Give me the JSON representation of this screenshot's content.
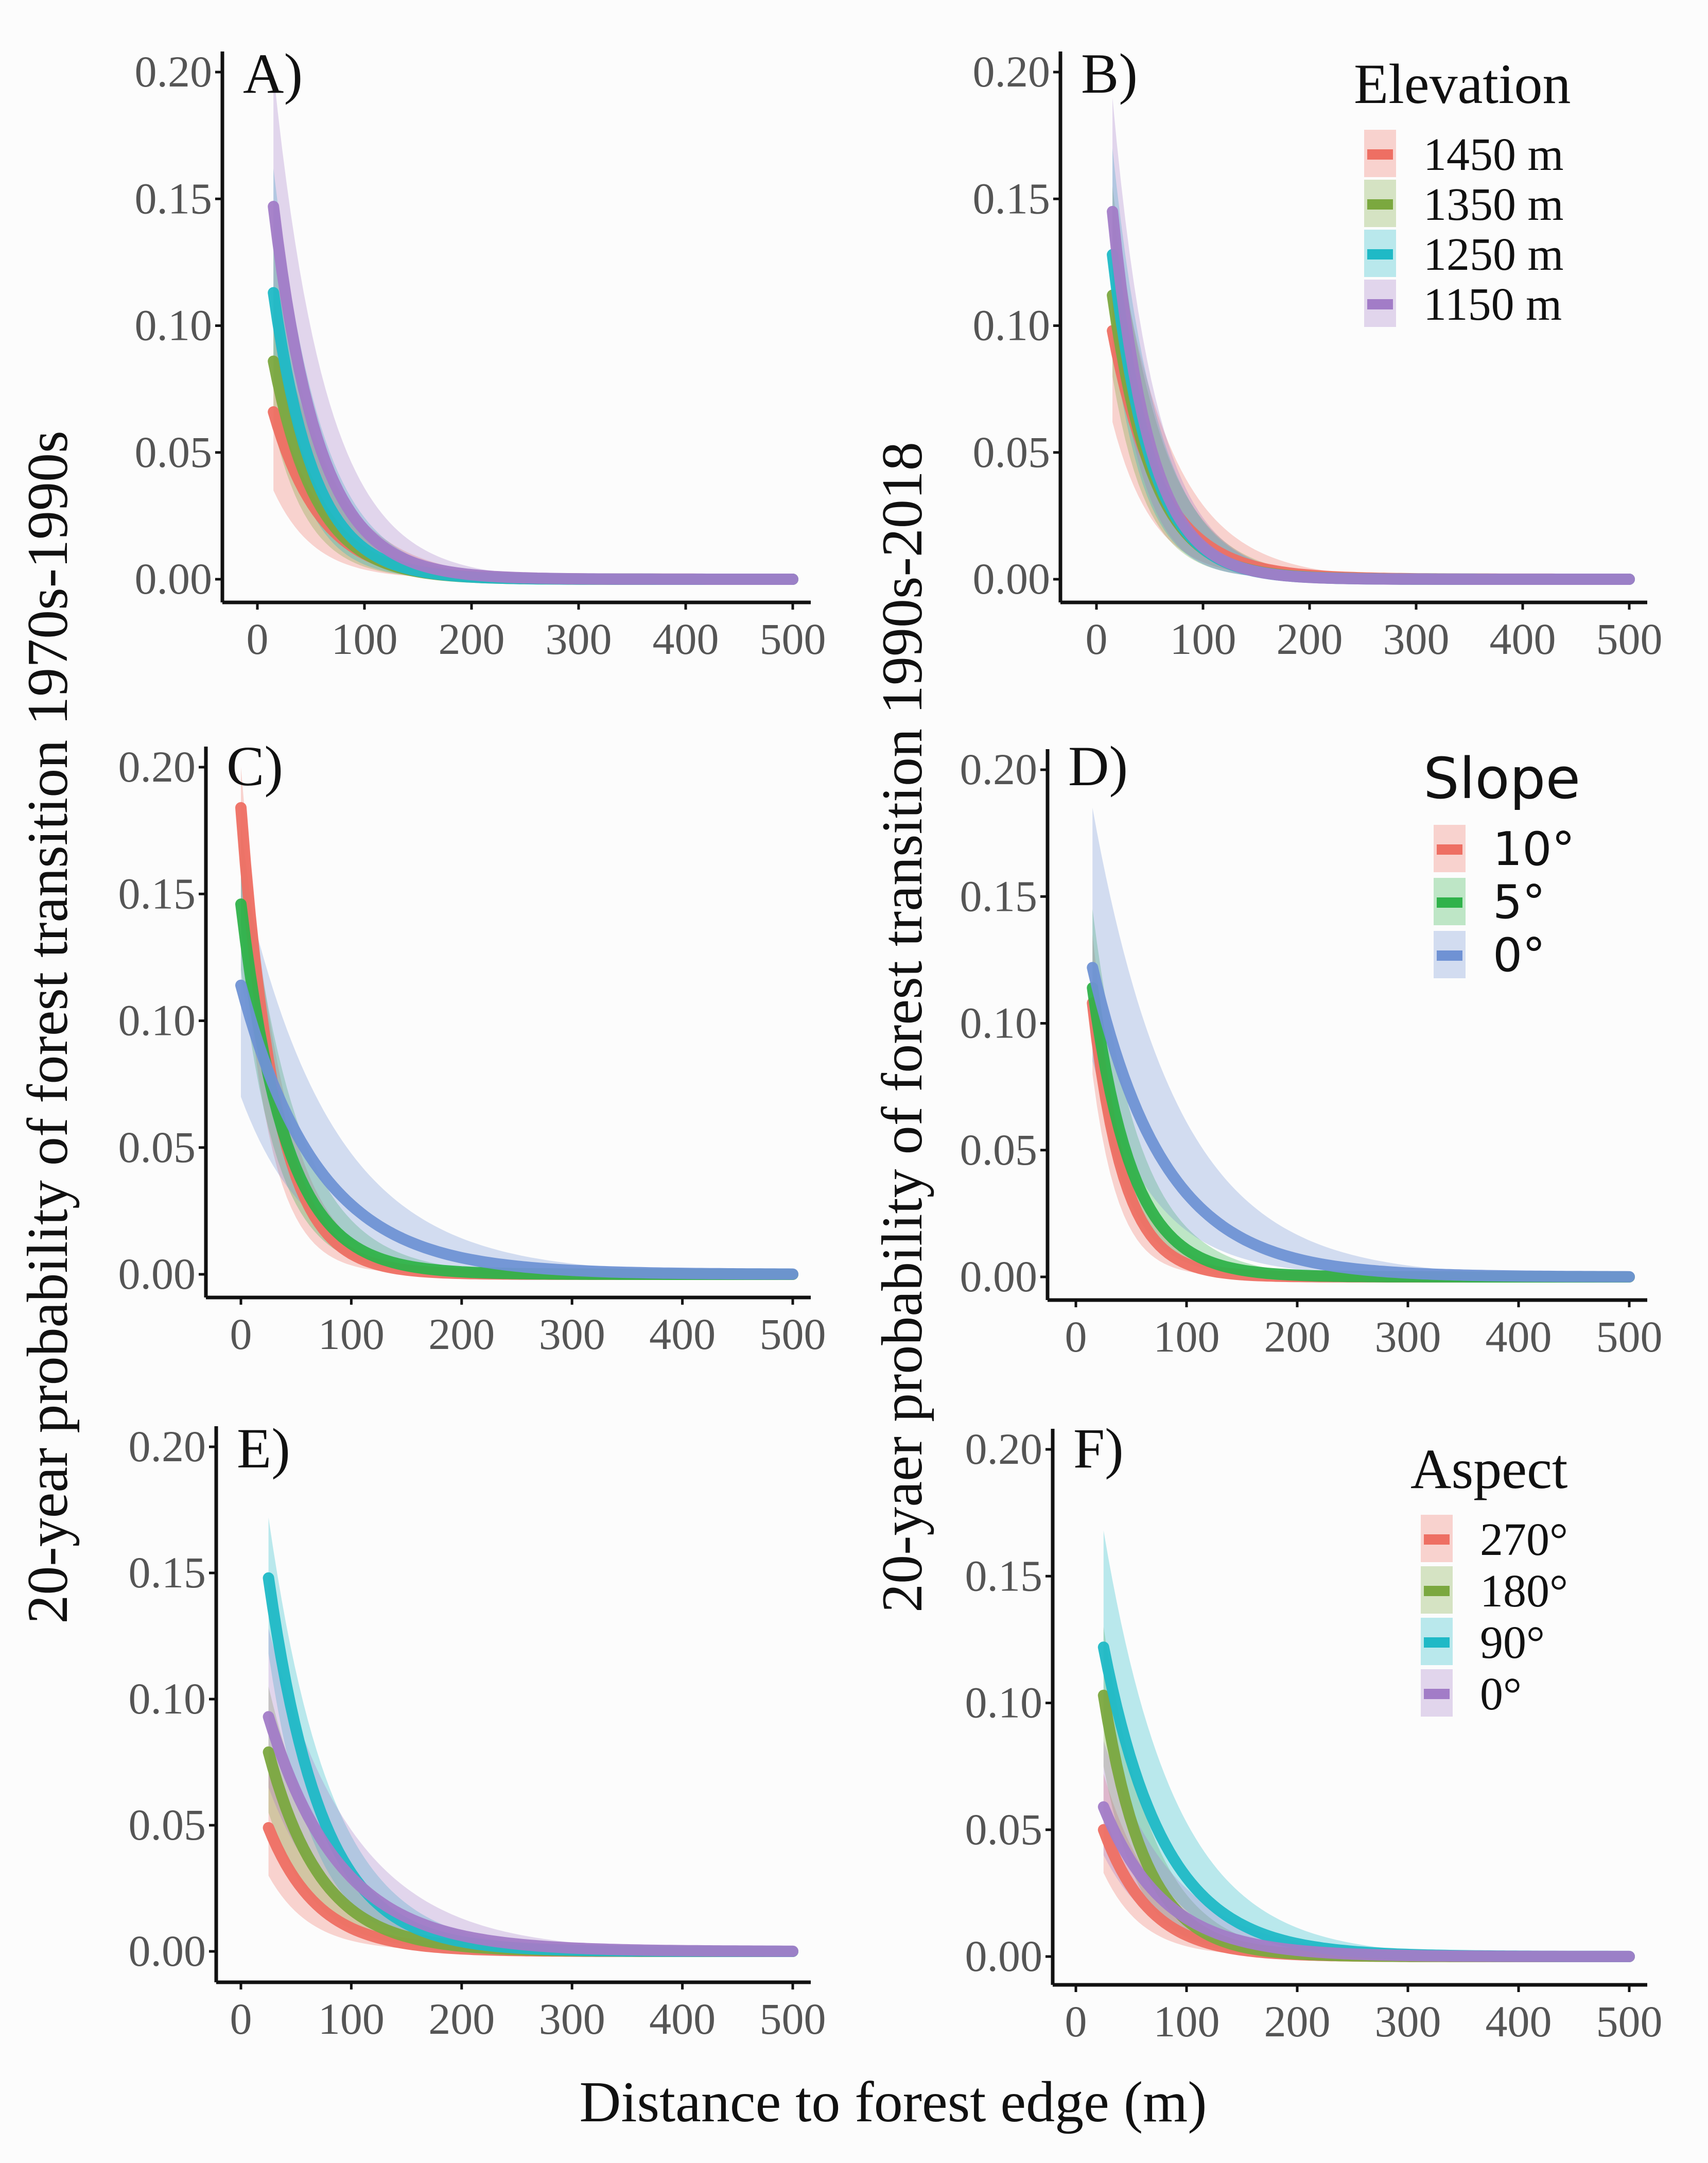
{
  "ylabel_left": "20-year probability of forest transition 1970s-1990s",
  "ylabel_right": "20-yaer probability of forest transition 1990s-2018",
  "xlabel": "Distance to forest edge (m)",
  "colors": {
    "red": "#ee6f63",
    "olive": "#7ba83f",
    "teal": "#1fb9c6",
    "purple": "#a27cc7",
    "green": "#2fb24a",
    "blue": "#6f92d4"
  },
  "legends": {
    "elevation": {
      "title": "Elevation",
      "items": [
        {
          "label": "1450 m",
          "color": "#ee6f63"
        },
        {
          "label": "1350 m",
          "color": "#7ba83f"
        },
        {
          "label": "1250 m",
          "color": "#1fb9c6"
        },
        {
          "label": "1150 m",
          "color": "#a27cc7"
        }
      ]
    },
    "slope": {
      "title": "Slope",
      "items": [
        {
          "label": "10°",
          "color": "#ee6f63"
        },
        {
          "label": "5°",
          "color": "#2fb24a"
        },
        {
          "label": "0°",
          "color": "#6f92d4"
        }
      ]
    },
    "aspect": {
      "title": "Aspect",
      "items": [
        {
          "label": "270°",
          "color": "#ee6f63"
        },
        {
          "label": "180°",
          "color": "#7ba83f"
        },
        {
          "label": "90°",
          "color": "#1fb9c6"
        },
        {
          "label": "0°",
          "color": "#a27cc7"
        }
      ]
    }
  },
  "chart_data": [
    {
      "type": "line",
      "panel": "A)",
      "xlim": [
        -30,
        510
      ],
      "ylim": [
        0,
        0.2
      ],
      "xticks": [
        "0",
        "100",
        "200",
        "300",
        "400",
        "500"
      ],
      "yticks": [
        "0.00",
        "0.05",
        "0.10",
        "0.15",
        "0.20"
      ],
      "x_range": [
        15,
        500
      ],
      "series": [
        {
          "name": "1450 m",
          "color": "#ee6f63",
          "y0": 0.066,
          "x0": 15,
          "decay": 45,
          "band": [
            0.035,
            0.112
          ]
        },
        {
          "name": "1350 m",
          "color": "#7ba83f",
          "y0": 0.086,
          "x0": 15,
          "decay": 40,
          "band": [
            0.06,
            0.13
          ]
        },
        {
          "name": "1250 m",
          "color": "#1fb9c6",
          "y0": 0.113,
          "x0": 15,
          "decay": 38,
          "band": [
            0.08,
            0.162
          ]
        },
        {
          "name": "1150 m",
          "color": "#a27cc7",
          "y0": 0.147,
          "x0": 15,
          "decay": 42,
          "band": [
            0.098,
            0.2
          ]
        }
      ]
    },
    {
      "type": "line",
      "panel": "B)",
      "xlim": [
        -30,
        510
      ],
      "ylim": [
        0,
        0.2
      ],
      "xticks": [
        "0",
        "100",
        "200",
        "300",
        "400",
        "500"
      ],
      "yticks": [
        "0.00",
        "0.05",
        "0.10",
        "0.15",
        "0.20"
      ],
      "x_range": [
        15,
        500
      ],
      "series": [
        {
          "name": "1450 m",
          "color": "#ee6f63",
          "y0": 0.098,
          "x0": 15,
          "decay": 45,
          "band": [
            0.062,
            0.145
          ]
        },
        {
          "name": "1350 m",
          "color": "#7ba83f",
          "y0": 0.112,
          "x0": 15,
          "decay": 38,
          "band": [
            0.08,
            0.155
          ]
        },
        {
          "name": "1250 m",
          "color": "#1fb9c6",
          "y0": 0.128,
          "x0": 15,
          "decay": 36,
          "band": [
            0.095,
            0.17
          ]
        },
        {
          "name": "1150 m",
          "color": "#a27cc7",
          "y0": 0.145,
          "x0": 15,
          "decay": 35,
          "band": [
            0.105,
            0.19
          ]
        }
      ]
    },
    {
      "type": "line",
      "panel": "C)",
      "xlim": [
        -30,
        510
      ],
      "ylim": [
        0,
        0.2
      ],
      "xticks": [
        "0",
        "100",
        "200",
        "300",
        "400",
        "500"
      ],
      "yticks": [
        "0.00",
        "0.05",
        "0.10",
        "0.15",
        "0.20"
      ],
      "x_range": [
        0,
        500
      ],
      "series": [
        {
          "name": "10°",
          "color": "#ee6f63",
          "y0": 0.184,
          "x0": 0,
          "decay": 32,
          "band": [
            0.14,
            0.2
          ]
        },
        {
          "name": "5°",
          "color": "#2fb24a",
          "y0": 0.146,
          "x0": 0,
          "decay": 40,
          "band": [
            0.12,
            0.178
          ]
        },
        {
          "name": "0°",
          "color": "#6f92d4",
          "y0": 0.114,
          "x0": 0,
          "decay": 70,
          "band": [
            0.07,
            0.16
          ]
        }
      ]
    },
    {
      "type": "line",
      "panel": "D)",
      "xlim": [
        -30,
        510
      ],
      "ylim": [
        0,
        0.2
      ],
      "xticks": [
        "0",
        "100",
        "200",
        "300",
        "400",
        "500"
      ],
      "yticks": [
        "0.00",
        "0.05",
        "0.10",
        "0.15",
        "0.20"
      ],
      "x_range": [
        15,
        500
      ],
      "series": [
        {
          "name": "10°",
          "color": "#ee6f63",
          "y0": 0.108,
          "x0": 15,
          "decay": 28,
          "band": [
            0.08,
            0.135
          ]
        },
        {
          "name": "5°",
          "color": "#2fb24a",
          "y0": 0.114,
          "x0": 15,
          "decay": 36,
          "band": [
            0.09,
            0.145
          ]
        },
        {
          "name": "0°",
          "color": "#6f92d4",
          "y0": 0.122,
          "x0": 15,
          "decay": 65,
          "band": [
            0.085,
            0.185
          ]
        }
      ]
    },
    {
      "type": "line",
      "panel": "E)",
      "xlim": [
        -30,
        510
      ],
      "ylim": [
        0,
        0.2
      ],
      "xticks": [
        "0",
        "100",
        "200",
        "300",
        "400",
        "500"
      ],
      "yticks": [
        "0.00",
        "0.05",
        "0.10",
        "0.15",
        "0.20"
      ],
      "x_range": [
        25,
        500
      ],
      "series": [
        {
          "name": "270°",
          "color": "#ee6f63",
          "y0": 0.049,
          "x0": 25,
          "decay": 45,
          "band": [
            0.03,
            0.072
          ]
        },
        {
          "name": "180°",
          "color": "#7ba83f",
          "y0": 0.079,
          "x0": 25,
          "decay": 48,
          "band": [
            0.055,
            0.105
          ]
        },
        {
          "name": "90°",
          "color": "#1fb9c6",
          "y0": 0.148,
          "x0": 25,
          "decay": 48,
          "band": [
            0.118,
            0.172
          ]
        },
        {
          "name": "0°",
          "color": "#a27cc7",
          "y0": 0.093,
          "x0": 25,
          "decay": 65,
          "band": [
            0.065,
            0.128
          ]
        }
      ]
    },
    {
      "type": "line",
      "panel": "F)",
      "xlim": [
        -30,
        510
      ],
      "ylim": [
        0,
        0.2
      ],
      "xticks": [
        "0",
        "100",
        "200",
        "300",
        "400",
        "500"
      ],
      "yticks": [
        "0.00",
        "0.05",
        "0.10",
        "0.15",
        "0.20"
      ],
      "x_range": [
        25,
        500
      ],
      "series": [
        {
          "name": "270°",
          "color": "#ee6f63",
          "y0": 0.05,
          "x0": 25,
          "decay": 42,
          "band": [
            0.033,
            0.072
          ]
        },
        {
          "name": "180°",
          "color": "#7ba83f",
          "y0": 0.103,
          "x0": 25,
          "decay": 38,
          "band": [
            0.075,
            0.13
          ]
        },
        {
          "name": "90°",
          "color": "#1fb9c6",
          "y0": 0.122,
          "x0": 25,
          "decay": 55,
          "band": [
            0.09,
            0.168
          ]
        },
        {
          "name": "0°",
          "color": "#a27cc7",
          "y0": 0.059,
          "x0": 25,
          "decay": 55,
          "band": [
            0.04,
            0.085
          ]
        }
      ]
    }
  ]
}
